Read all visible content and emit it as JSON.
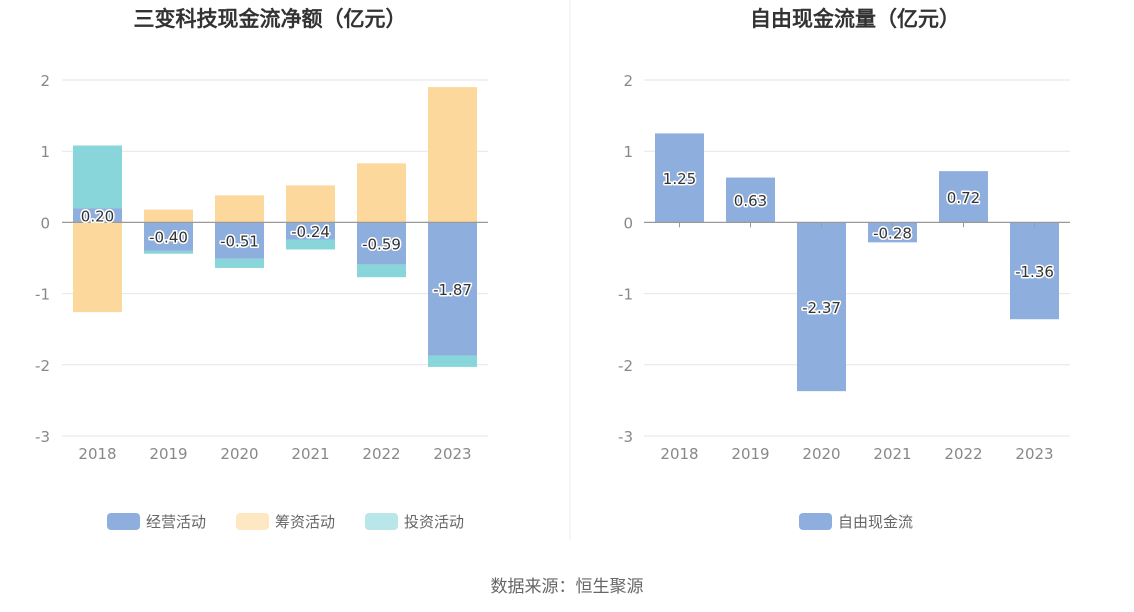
{
  "colors": {
    "operating": "#8eaedd",
    "financing": "#fdd89c",
    "investing": "#88d5da",
    "free_cash_flow": "#8eaedd",
    "axis": "#999999",
    "grid": "#e6e6e6",
    "title": "#333333",
    "tick": "#888888"
  },
  "source": "数据来源：恒生聚源",
  "chart_data": [
    {
      "type": "bar",
      "stacked": true,
      "title": "三变科技现金流净额（亿元）",
      "categories": [
        "2018",
        "2019",
        "2020",
        "2021",
        "2022",
        "2023"
      ],
      "ylim": [
        -3,
        2
      ],
      "yticks": [
        "2",
        "1",
        "0",
        "-1",
        "-2",
        "-3"
      ],
      "grid": true,
      "legend_position": "bottom",
      "series": [
        {
          "name": "经营活动",
          "color_key": "operating",
          "values": [
            0.2,
            -0.4,
            -0.51,
            -0.24,
            -0.59,
            -1.87
          ],
          "labels": [
            "0.20",
            "-0.40",
            "-0.51",
            "-0.24",
            "-0.59",
            "-1.87"
          ]
        },
        {
          "name": "筹资活动",
          "color_key": "financing",
          "values": [
            -1.26,
            0.18,
            0.38,
            0.52,
            0.83,
            1.9
          ]
        },
        {
          "name": "投资活动",
          "color_key": "investing",
          "values": [
            0.88,
            -0.04,
            -0.13,
            -0.14,
            -0.18,
            -0.16
          ]
        }
      ]
    },
    {
      "type": "bar",
      "title": "自由现金流量（亿元）",
      "categories": [
        "2018",
        "2019",
        "2020",
        "2021",
        "2022",
        "2023"
      ],
      "ylim": [
        -3,
        2
      ],
      "yticks": [
        "2",
        "1",
        "0",
        "-1",
        "-2",
        "-3"
      ],
      "grid": true,
      "legend_position": "bottom",
      "series": [
        {
          "name": "自由现金流",
          "color_key": "free_cash_flow",
          "values": [
            1.25,
            0.63,
            -2.37,
            -0.28,
            0.72,
            -1.36
          ],
          "labels": [
            "1.25",
            "0.63",
            "-2.37",
            "-0.28",
            "0.72",
            "-1.36"
          ]
        }
      ]
    }
  ]
}
